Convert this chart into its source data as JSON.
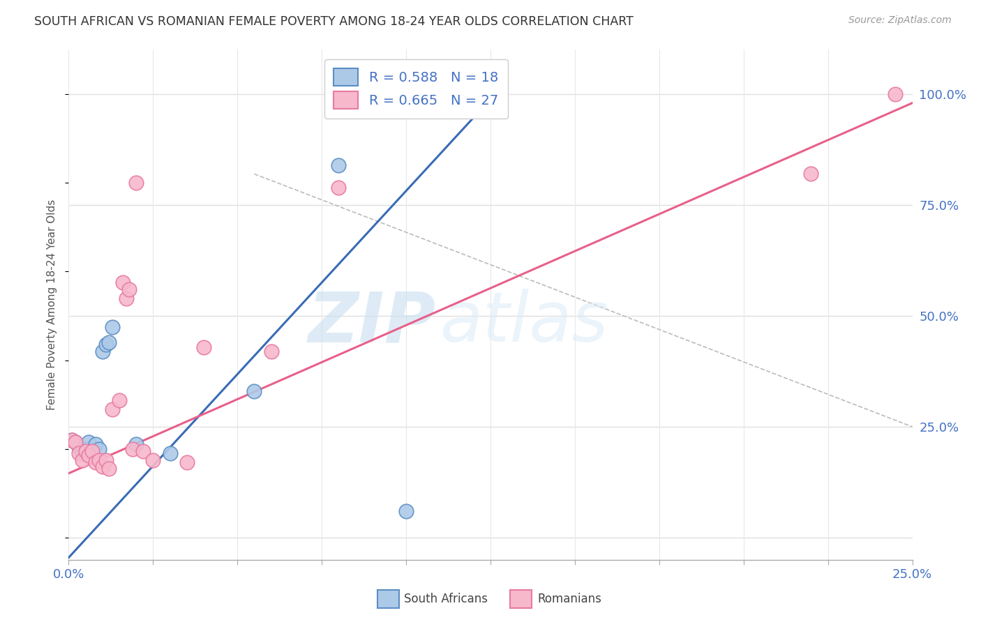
{
  "title": "SOUTH AFRICAN VS ROMANIAN FEMALE POVERTY AMONG 18-24 YEAR OLDS CORRELATION CHART",
  "source": "Source: ZipAtlas.com",
  "ylabel": "Female Poverty Among 18-24 Year Olds",
  "xlim": [
    0.0,
    0.25
  ],
  "ylim": [
    -0.05,
    1.1
  ],
  "xtick_positions": [
    0.0,
    0.025,
    0.05,
    0.075,
    0.1,
    0.125,
    0.15,
    0.175,
    0.2,
    0.225,
    0.25
  ],
  "yticks_right": [
    0.25,
    0.5,
    0.75,
    1.0
  ],
  "blue_R": 0.588,
  "blue_N": 18,
  "pink_R": 0.665,
  "pink_N": 27,
  "blue_color": "#adc9e8",
  "pink_color": "#f7b8cc",
  "blue_edge_color": "#5b8ec4",
  "pink_edge_color": "#e87aa0",
  "blue_line_color": "#3a6cb5",
  "pink_line_color": "#e8608a",
  "blue_scatter": [
    [
      0.001,
      0.22
    ],
    [
      0.002,
      0.215
    ],
    [
      0.003,
      0.205
    ],
    [
      0.004,
      0.19
    ],
    [
      0.005,
      0.2
    ],
    [
      0.006,
      0.215
    ],
    [
      0.007,
      0.195
    ],
    [
      0.008,
      0.21
    ],
    [
      0.009,
      0.2
    ],
    [
      0.01,
      0.42
    ],
    [
      0.011,
      0.435
    ],
    [
      0.012,
      0.44
    ],
    [
      0.013,
      0.475
    ],
    [
      0.02,
      0.21
    ],
    [
      0.03,
      0.19
    ],
    [
      0.055,
      0.33
    ],
    [
      0.08,
      0.84
    ],
    [
      0.1,
      0.06
    ]
  ],
  "pink_scatter": [
    [
      0.001,
      0.22
    ],
    [
      0.002,
      0.215
    ],
    [
      0.003,
      0.19
    ],
    [
      0.004,
      0.175
    ],
    [
      0.005,
      0.195
    ],
    [
      0.006,
      0.185
    ],
    [
      0.007,
      0.195
    ],
    [
      0.008,
      0.17
    ],
    [
      0.009,
      0.175
    ],
    [
      0.01,
      0.16
    ],
    [
      0.011,
      0.175
    ],
    [
      0.012,
      0.155
    ],
    [
      0.013,
      0.29
    ],
    [
      0.015,
      0.31
    ],
    [
      0.016,
      0.575
    ],
    [
      0.017,
      0.54
    ],
    [
      0.018,
      0.56
    ],
    [
      0.019,
      0.2
    ],
    [
      0.02,
      0.8
    ],
    [
      0.022,
      0.195
    ],
    [
      0.025,
      0.175
    ],
    [
      0.035,
      0.17
    ],
    [
      0.04,
      0.43
    ],
    [
      0.06,
      0.42
    ],
    [
      0.08,
      0.79
    ],
    [
      0.22,
      0.82
    ],
    [
      0.245,
      1.0
    ]
  ],
  "blue_line_x": [
    0.0,
    0.13
  ],
  "blue_line_y": [
    -0.045,
    1.03
  ],
  "pink_line_x": [
    0.0,
    0.25
  ],
  "pink_line_y": [
    0.145,
    0.98
  ],
  "diag_line_x": [
    0.055,
    0.25
  ],
  "diag_line_y": [
    0.82,
    0.25
  ],
  "watermark_zip": "ZIP",
  "watermark_atlas": "atlas",
  "background_color": "#ffffff",
  "grid_h_color": "#e0e0e0",
  "grid_v_color": "#e8e8e8"
}
